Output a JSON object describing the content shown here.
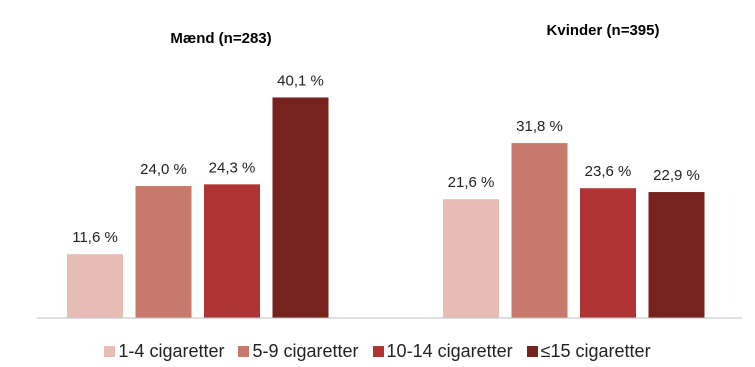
{
  "chart_data": {
    "type": "bar",
    "categories": [
      "Mænd (n=283)",
      "Kvinder (n=395)"
    ],
    "series": [
      {
        "name": "1-4 cigaretter",
        "color": "#e6bcb5",
        "values": [
          11.6,
          21.6
        ],
        "labels": [
          "11,6 %",
          "21,6 %"
        ]
      },
      {
        "name": "5-9 cigaretter",
        "color": "#c7796b",
        "values": [
          24.0,
          31.8
        ],
        "labels": [
          "24,0 %",
          "31,8 %"
        ]
      },
      {
        "name": "10-14 cigaretter",
        "color": "#b03434",
        "values": [
          24.3,
          23.6
        ],
        "labels": [
          "24,3 %",
          "23,6 %"
        ]
      },
      {
        "name": "≤15 cigaretter",
        "color": "#76221f",
        "values": [
          40.1,
          22.9
        ],
        "labels": [
          "40,1 %",
          "22,9 %"
        ]
      }
    ],
    "ylim": [
      0,
      45
    ],
    "grid": false,
    "legend_position": "bottom",
    "baseline_color": "#bfbfbf"
  }
}
